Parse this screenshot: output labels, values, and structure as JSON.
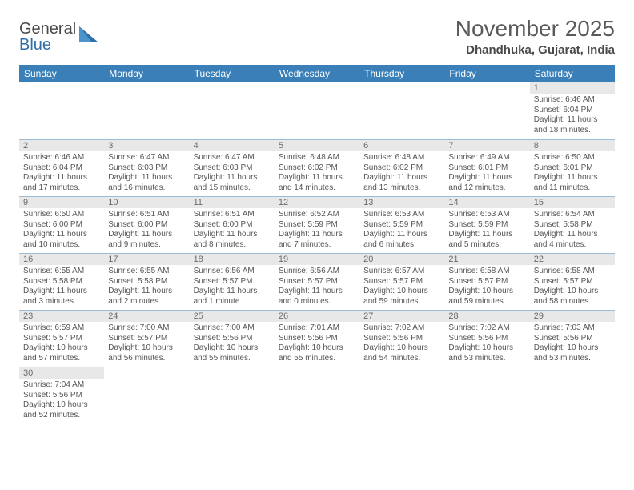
{
  "logo": {
    "general": "General",
    "blue": "Blue"
  },
  "title": "November 2025",
  "location": "Dhandhuka, Gujarat, India",
  "colors": {
    "header_bg": "#3a7fb8",
    "daynum_bg": "#e8e8e8",
    "border": "#9dbdd6",
    "text": "#555555"
  },
  "daynames": [
    "Sunday",
    "Monday",
    "Tuesday",
    "Wednesday",
    "Thursday",
    "Friday",
    "Saturday"
  ],
  "weeks": [
    [
      null,
      null,
      null,
      null,
      null,
      null,
      {
        "n": "1",
        "sr": "Sunrise: 6:46 AM",
        "ss": "Sunset: 6:04 PM",
        "d1": "Daylight: 11 hours",
        "d2": "and 18 minutes."
      }
    ],
    [
      {
        "n": "2",
        "sr": "Sunrise: 6:46 AM",
        "ss": "Sunset: 6:04 PM",
        "d1": "Daylight: 11 hours",
        "d2": "and 17 minutes."
      },
      {
        "n": "3",
        "sr": "Sunrise: 6:47 AM",
        "ss": "Sunset: 6:03 PM",
        "d1": "Daylight: 11 hours",
        "d2": "and 16 minutes."
      },
      {
        "n": "4",
        "sr": "Sunrise: 6:47 AM",
        "ss": "Sunset: 6:03 PM",
        "d1": "Daylight: 11 hours",
        "d2": "and 15 minutes."
      },
      {
        "n": "5",
        "sr": "Sunrise: 6:48 AM",
        "ss": "Sunset: 6:02 PM",
        "d1": "Daylight: 11 hours",
        "d2": "and 14 minutes."
      },
      {
        "n": "6",
        "sr": "Sunrise: 6:48 AM",
        "ss": "Sunset: 6:02 PM",
        "d1": "Daylight: 11 hours",
        "d2": "and 13 minutes."
      },
      {
        "n": "7",
        "sr": "Sunrise: 6:49 AM",
        "ss": "Sunset: 6:01 PM",
        "d1": "Daylight: 11 hours",
        "d2": "and 12 minutes."
      },
      {
        "n": "8",
        "sr": "Sunrise: 6:50 AM",
        "ss": "Sunset: 6:01 PM",
        "d1": "Daylight: 11 hours",
        "d2": "and 11 minutes."
      }
    ],
    [
      {
        "n": "9",
        "sr": "Sunrise: 6:50 AM",
        "ss": "Sunset: 6:00 PM",
        "d1": "Daylight: 11 hours",
        "d2": "and 10 minutes."
      },
      {
        "n": "10",
        "sr": "Sunrise: 6:51 AM",
        "ss": "Sunset: 6:00 PM",
        "d1": "Daylight: 11 hours",
        "d2": "and 9 minutes."
      },
      {
        "n": "11",
        "sr": "Sunrise: 6:51 AM",
        "ss": "Sunset: 6:00 PM",
        "d1": "Daylight: 11 hours",
        "d2": "and 8 minutes."
      },
      {
        "n": "12",
        "sr": "Sunrise: 6:52 AM",
        "ss": "Sunset: 5:59 PM",
        "d1": "Daylight: 11 hours",
        "d2": "and 7 minutes."
      },
      {
        "n": "13",
        "sr": "Sunrise: 6:53 AM",
        "ss": "Sunset: 5:59 PM",
        "d1": "Daylight: 11 hours",
        "d2": "and 6 minutes."
      },
      {
        "n": "14",
        "sr": "Sunrise: 6:53 AM",
        "ss": "Sunset: 5:59 PM",
        "d1": "Daylight: 11 hours",
        "d2": "and 5 minutes."
      },
      {
        "n": "15",
        "sr": "Sunrise: 6:54 AM",
        "ss": "Sunset: 5:58 PM",
        "d1": "Daylight: 11 hours",
        "d2": "and 4 minutes."
      }
    ],
    [
      {
        "n": "16",
        "sr": "Sunrise: 6:55 AM",
        "ss": "Sunset: 5:58 PM",
        "d1": "Daylight: 11 hours",
        "d2": "and 3 minutes."
      },
      {
        "n": "17",
        "sr": "Sunrise: 6:55 AM",
        "ss": "Sunset: 5:58 PM",
        "d1": "Daylight: 11 hours",
        "d2": "and 2 minutes."
      },
      {
        "n": "18",
        "sr": "Sunrise: 6:56 AM",
        "ss": "Sunset: 5:57 PM",
        "d1": "Daylight: 11 hours",
        "d2": "and 1 minute."
      },
      {
        "n": "19",
        "sr": "Sunrise: 6:56 AM",
        "ss": "Sunset: 5:57 PM",
        "d1": "Daylight: 11 hours",
        "d2": "and 0 minutes."
      },
      {
        "n": "20",
        "sr": "Sunrise: 6:57 AM",
        "ss": "Sunset: 5:57 PM",
        "d1": "Daylight: 10 hours",
        "d2": "and 59 minutes."
      },
      {
        "n": "21",
        "sr": "Sunrise: 6:58 AM",
        "ss": "Sunset: 5:57 PM",
        "d1": "Daylight: 10 hours",
        "d2": "and 59 minutes."
      },
      {
        "n": "22",
        "sr": "Sunrise: 6:58 AM",
        "ss": "Sunset: 5:57 PM",
        "d1": "Daylight: 10 hours",
        "d2": "and 58 minutes."
      }
    ],
    [
      {
        "n": "23",
        "sr": "Sunrise: 6:59 AM",
        "ss": "Sunset: 5:57 PM",
        "d1": "Daylight: 10 hours",
        "d2": "and 57 minutes."
      },
      {
        "n": "24",
        "sr": "Sunrise: 7:00 AM",
        "ss": "Sunset: 5:57 PM",
        "d1": "Daylight: 10 hours",
        "d2": "and 56 minutes."
      },
      {
        "n": "25",
        "sr": "Sunrise: 7:00 AM",
        "ss": "Sunset: 5:56 PM",
        "d1": "Daylight: 10 hours",
        "d2": "and 55 minutes."
      },
      {
        "n": "26",
        "sr": "Sunrise: 7:01 AM",
        "ss": "Sunset: 5:56 PM",
        "d1": "Daylight: 10 hours",
        "d2": "and 55 minutes."
      },
      {
        "n": "27",
        "sr": "Sunrise: 7:02 AM",
        "ss": "Sunset: 5:56 PM",
        "d1": "Daylight: 10 hours",
        "d2": "and 54 minutes."
      },
      {
        "n": "28",
        "sr": "Sunrise: 7:02 AM",
        "ss": "Sunset: 5:56 PM",
        "d1": "Daylight: 10 hours",
        "d2": "and 53 minutes."
      },
      {
        "n": "29",
        "sr": "Sunrise: 7:03 AM",
        "ss": "Sunset: 5:56 PM",
        "d1": "Daylight: 10 hours",
        "d2": "and 53 minutes."
      }
    ],
    [
      {
        "n": "30",
        "sr": "Sunrise: 7:04 AM",
        "ss": "Sunset: 5:56 PM",
        "d1": "Daylight: 10 hours",
        "d2": "and 52 minutes."
      },
      null,
      null,
      null,
      null,
      null,
      null
    ]
  ]
}
